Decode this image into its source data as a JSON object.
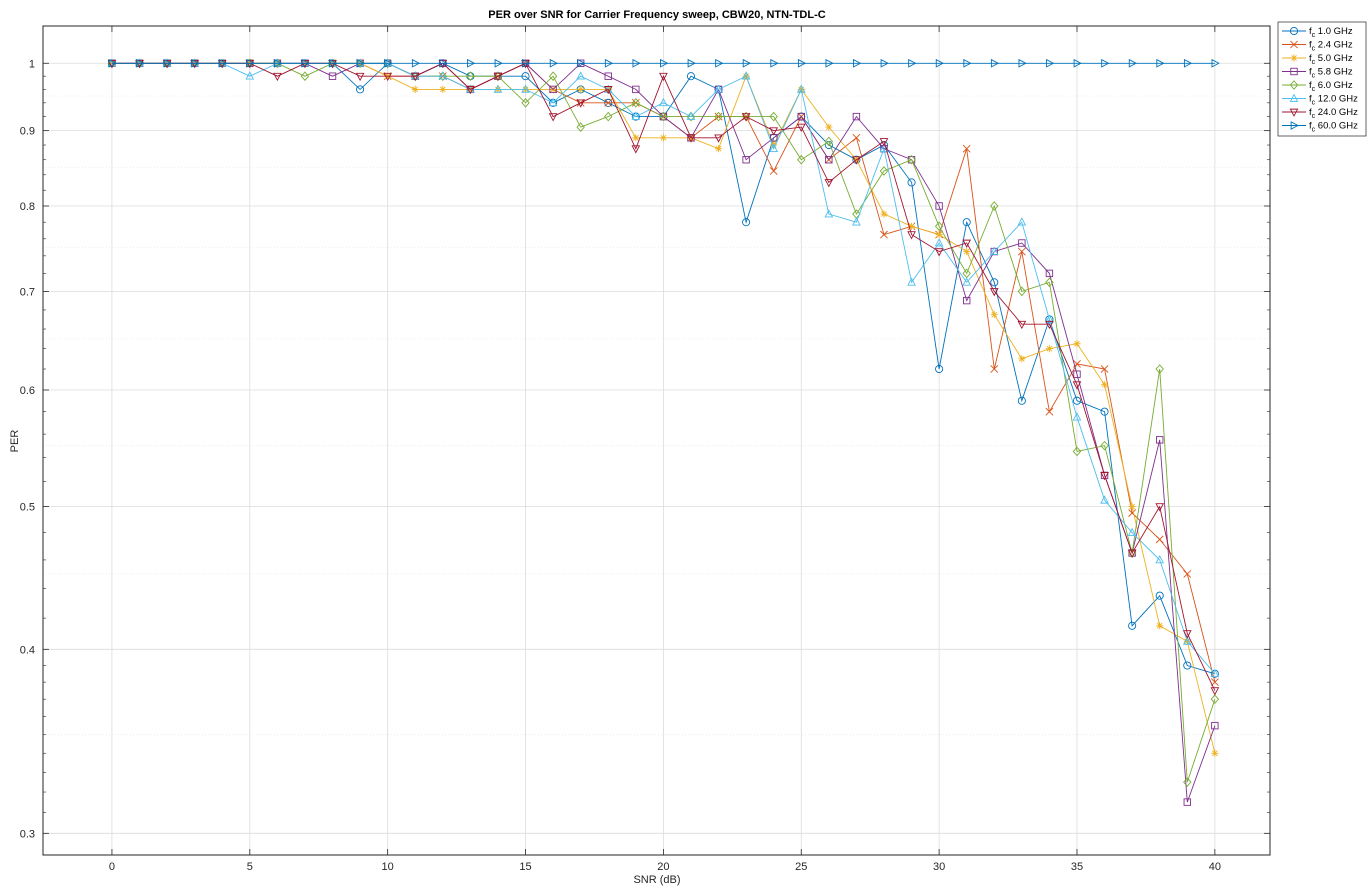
{
  "chart_data": {
    "type": "line",
    "title": "PER over SNR for Carrier Frequency sweep, CBW20, NTN-TDL-C",
    "xlabel": "SNR (dB)",
    "ylabel": "PER",
    "yscale": "log",
    "xlim": [
      -2.5,
      42
    ],
    "ylim": [
      0.29,
      1.06
    ],
    "xticks": [
      0,
      5,
      10,
      15,
      20,
      25,
      30,
      35,
      40
    ],
    "yticks": [
      0.3,
      0.4,
      0.5,
      0.6,
      0.7,
      0.8,
      0.9,
      1
    ],
    "ytick_labels": [
      "0.3",
      "0.4",
      "0.5",
      "0.6",
      "0.7",
      "0.8",
      "0.9",
      "1"
    ],
    "grid": true,
    "legend_position": "outside-top-right",
    "x": [
      0,
      1,
      2,
      3,
      4,
      5,
      6,
      7,
      8,
      9,
      10,
      11,
      12,
      13,
      14,
      15,
      16,
      17,
      18,
      19,
      20,
      21,
      22,
      23,
      24,
      25,
      26,
      27,
      28,
      29,
      30,
      31,
      32,
      33,
      34,
      35,
      36,
      37,
      38,
      39,
      40
    ],
    "series": [
      {
        "name": "1.0 GHz",
        "name_prefix": "f",
        "name_sub": "c",
        "color": "#0072BD",
        "marker": "circle",
        "values": [
          1,
          1,
          1,
          1,
          1,
          1,
          1,
          1,
          1,
          0.96,
          1,
          0.98,
          1,
          0.98,
          0.98,
          0.98,
          0.94,
          0.96,
          0.94,
          0.92,
          0.92,
          0.98,
          0.96,
          0.78,
          0.89,
          0.92,
          0.88,
          0.86,
          0.88,
          0.83,
          0.62,
          0.78,
          0.71,
          0.59,
          0.67,
          0.59,
          0.58,
          0.415,
          0.435,
          0.39,
          0.385
        ]
      },
      {
        "name": "2.4 GHz",
        "name_prefix": "f",
        "name_sub": "c",
        "color": "#D95319",
        "marker": "x",
        "values": [
          1,
          1,
          1,
          1,
          1,
          1,
          1,
          1,
          1,
          1,
          0.98,
          0.98,
          0.98,
          0.96,
          0.98,
          1,
          0.96,
          0.94,
          0.94,
          0.94,
          0.92,
          0.89,
          0.92,
          0.92,
          0.845,
          0.92,
          0.86,
          0.89,
          0.765,
          0.775,
          0.765,
          0.875,
          0.62,
          0.745,
          0.58,
          0.625,
          0.62,
          0.495,
          0.475,
          0.45,
          0.38
        ]
      },
      {
        "name": "5.0 GHz",
        "name_prefix": "f",
        "name_sub": "c",
        "color": "#EDB120",
        "marker": "asterisk",
        "values": [
          1,
          1,
          1,
          1,
          1,
          1,
          1,
          1,
          1,
          1,
          0.98,
          0.96,
          0.96,
          0.96,
          0.96,
          0.96,
          0.96,
          0.96,
          0.96,
          0.89,
          0.89,
          0.89,
          0.875,
          0.98,
          0.88,
          0.96,
          0.905,
          0.86,
          0.79,
          0.775,
          0.765,
          0.745,
          0.675,
          0.63,
          0.64,
          0.645,
          0.605,
          0.5,
          0.415,
          0.405,
          0.34
        ]
      },
      {
        "name": "5.8 GHz",
        "name_prefix": "f",
        "name_sub": "c",
        "color": "#7E2F8E",
        "marker": "square",
        "values": [
          1,
          1,
          1,
          1,
          1,
          1,
          1,
          1,
          0.98,
          1,
          1,
          0.98,
          1,
          0.96,
          0.98,
          1,
          0.96,
          1,
          0.98,
          0.96,
          0.92,
          0.89,
          0.96,
          0.86,
          0.89,
          0.92,
          0.86,
          0.92,
          0.875,
          0.86,
          0.8,
          0.69,
          0.745,
          0.755,
          0.72,
          0.615,
          0.525,
          0.465,
          0.555,
          0.315,
          0.355
        ]
      },
      {
        "name": "6.0 GHz",
        "name_prefix": "f",
        "name_sub": "c",
        "color": "#77AC30",
        "marker": "diamond",
        "values": [
          1,
          1,
          1,
          1,
          1,
          1,
          1,
          0.98,
          1,
          1,
          1,
          0.98,
          0.98,
          0.98,
          0.98,
          0.94,
          0.98,
          0.905,
          0.92,
          0.94,
          0.92,
          0.92,
          0.92,
          0.92,
          0.92,
          0.86,
          0.885,
          0.79,
          0.845,
          0.86,
          0.775,
          0.72,
          0.8,
          0.7,
          0.71,
          0.545,
          0.55,
          0.465,
          0.62,
          0.325,
          0.37
        ]
      },
      {
        "name": "12.0 GHz",
        "name_prefix": "f",
        "name_sub": "c",
        "color": "#4DBEEE",
        "marker": "triangle-up",
        "values": [
          1,
          1,
          1,
          1,
          1,
          0.98,
          1,
          1,
          1,
          1,
          1,
          0.98,
          0.98,
          0.96,
          0.96,
          0.96,
          0.94,
          0.98,
          0.96,
          0.92,
          0.94,
          0.92,
          0.96,
          0.98,
          0.875,
          0.96,
          0.79,
          0.78,
          0.875,
          0.71,
          0.755,
          0.71,
          0.745,
          0.78,
          0.67,
          0.575,
          0.505,
          0.48,
          0.46,
          0.405,
          0.385
        ]
      },
      {
        "name": "24.0 GHz",
        "name_prefix": "f",
        "name_sub": "c",
        "color": "#A2142F",
        "marker": "triangle-down",
        "values": [
          1,
          1,
          1,
          1,
          1,
          1,
          0.98,
          1,
          1,
          0.98,
          0.98,
          0.98,
          1,
          0.96,
          0.98,
          1,
          0.92,
          0.94,
          0.96,
          0.875,
          0.98,
          0.89,
          0.89,
          0.92,
          0.9,
          0.905,
          0.83,
          0.86,
          0.885,
          0.765,
          0.745,
          0.755,
          0.7,
          0.665,
          0.665,
          0.605,
          0.525,
          0.465,
          0.5,
          0.41,
          0.375
        ]
      },
      {
        "name": "60.0 GHz",
        "name_prefix": "f",
        "name_sub": "c",
        "color": "#0072BD",
        "marker": "triangle-right",
        "values": [
          1,
          1,
          1,
          1,
          1,
          1,
          1,
          1,
          1,
          1,
          1,
          1,
          1,
          1,
          1,
          1,
          1,
          1,
          1,
          1,
          1,
          1,
          1,
          1,
          1,
          1,
          1,
          1,
          1,
          1,
          1,
          1,
          1,
          1,
          1,
          1,
          1,
          1,
          1,
          1,
          1
        ]
      }
    ]
  }
}
